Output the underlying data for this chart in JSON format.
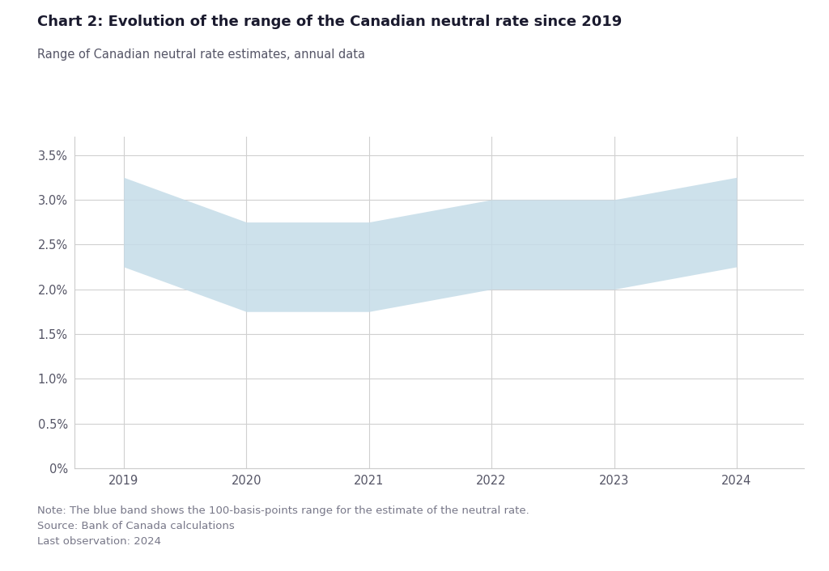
{
  "title": "Chart 2: Evolution of the range of the Canadian neutral rate since 2019",
  "subtitle": "Range of Canadian neutral rate estimates, annual data",
  "note_lines": [
    "Note: The blue band shows the 100-basis-points range for the estimate of the neutral rate.",
    "Source: Bank of Canada calculations",
    "Last observation: 2024"
  ],
  "x_values": [
    2019,
    2019.5,
    2020,
    2020.5,
    2021,
    2021.5,
    2022,
    2022.5,
    2023,
    2023.5,
    2024
  ],
  "upper_band": [
    3.25,
    3.0,
    2.75,
    2.75,
    2.75,
    2.875,
    3.0,
    3.0,
    3.0,
    3.125,
    3.25
  ],
  "lower_band": [
    2.25,
    2.0,
    1.75,
    1.75,
    1.75,
    1.875,
    2.0,
    2.0,
    2.0,
    2.125,
    2.25
  ],
  "fill_color": "#c5dce8",
  "fill_alpha": 0.85,
  "background_color": "#ffffff",
  "plot_bg_color": "#ffffff",
  "grid_color": "#d0d0d0",
  "title_fontsize": 13,
  "subtitle_fontsize": 10.5,
  "note_fontsize": 9.5,
  "tick_fontsize": 10.5,
  "title_color": "#1a1a2e",
  "text_color": "#555566",
  "note_color": "#777788",
  "ylim": [
    0,
    3.7
  ],
  "ytick_vals": [
    0,
    0.5,
    1.0,
    1.5,
    2.0,
    2.5,
    3.0,
    3.5
  ],
  "ytick_labels": [
    "0%",
    "0.5%",
    "1.0%",
    "1.5%",
    "2.0%",
    "2.5%",
    "3.0%",
    "3.5%"
  ],
  "xlim": [
    2018.6,
    2024.55
  ],
  "xticks": [
    2019,
    2020,
    2021,
    2022,
    2023,
    2024
  ],
  "spine_color": "#cccccc"
}
